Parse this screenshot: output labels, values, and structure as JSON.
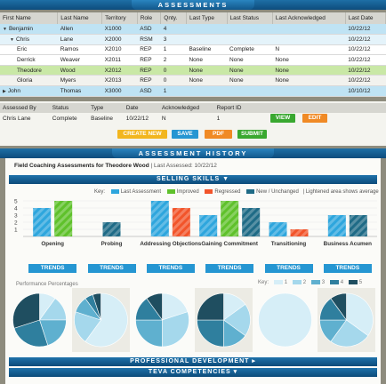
{
  "assessments_header": "ASSESSMENTS",
  "table": {
    "columns": [
      "First Name",
      "Last Name",
      "Territory",
      "Role",
      "Qnty.",
      "Last Type",
      "Last Status",
      "Last Acknowledged",
      "Last Date"
    ],
    "rows": [
      {
        "first": "Benjamin",
        "last": "Allen",
        "territory": "X1000",
        "role": "ASD",
        "qnty": "4",
        "type": "",
        "status": "",
        "ack": "",
        "date": "10/22/12",
        "style": "blue",
        "toggle": "▼",
        "indent": 0
      },
      {
        "first": "Chris",
        "last": "Lane",
        "territory": "X2000",
        "role": "RSM",
        "qnty": "3",
        "type": "",
        "status": "",
        "ack": "",
        "date": "10/22/12",
        "style": "lightblue",
        "toggle": "▼",
        "indent": 1
      },
      {
        "first": "Eric",
        "last": "Ramos",
        "territory": "X2010",
        "role": "REP",
        "qnty": "1",
        "type": "Baseline",
        "status": "Complete",
        "ack": "N",
        "date": "10/22/12",
        "style": "white",
        "toggle": "",
        "indent": 2
      },
      {
        "first": "Derrick",
        "last": "Weaver",
        "territory": "X2011",
        "role": "REP",
        "qnty": "2",
        "type": "None",
        "status": "None",
        "ack": "None",
        "date": "10/22/12",
        "style": "white",
        "toggle": "",
        "indent": 2
      },
      {
        "first": "Theodore",
        "last": "Wood",
        "territory": "X2012",
        "role": "REP",
        "qnty": "0",
        "type": "None",
        "status": "None",
        "ack": "None",
        "date": "10/22/12",
        "style": "green",
        "toggle": "",
        "indent": 2
      },
      {
        "first": "Gloria",
        "last": "Myers",
        "territory": "X2013",
        "role": "REP",
        "qnty": "0",
        "type": "None",
        "status": "None",
        "ack": "None",
        "date": "10/22/12",
        "style": "gray",
        "toggle": "",
        "indent": 2
      },
      {
        "first": "John",
        "last": "Thomas",
        "territory": "X3000",
        "role": "ASD",
        "qnty": "1",
        "type": "",
        "status": "",
        "ack": "",
        "date": "10/10/12",
        "style": "blue",
        "toggle": "▶",
        "indent": 0
      }
    ]
  },
  "detail": {
    "columns": [
      "Assessed By",
      "Status",
      "Type",
      "Date",
      "Acknowledged",
      "Report ID"
    ],
    "row": {
      "by": "Chris Lane",
      "status": "Complete",
      "type": "Baseline",
      "date": "10/22/12",
      "ack": "N",
      "report": "1"
    },
    "view_label": "VIEW",
    "edit_label": "EDIT",
    "create_label": "CREATE NEW",
    "save_label": "SAVE",
    "pdf_label": "PDF",
    "submit_label": "SUBMIT"
  },
  "history": {
    "header": "ASSESSMENT HISTORY",
    "title": "Field Coaching Assessments for Theodore Wood",
    "separator": "|",
    "last_assessed": "Last Assessed: 10/22/12",
    "selling_skills": "SELLING SKILLS ▼",
    "legend": {
      "key": "Key:",
      "last": "Last Assessment",
      "improved": "Improved",
      "regressed": "Regressed",
      "unchanged": "New / Unchanged",
      "note": "Lightened area shows average"
    },
    "trends_label": "TRENDS",
    "perf_label": "Performance Percentages",
    "pie_key": {
      "key": "Key:",
      "labels": [
        "1",
        "2",
        "3",
        "4",
        "5"
      ]
    },
    "prof_dev": "PROFESSIONAL DEVELOPMENT ▸",
    "teva": "TEVA COMPETENCIES ▾"
  },
  "colors": {
    "last": "#2ea6dd",
    "improved": "#5fc12b",
    "regressed": "#f2542a",
    "unchanged": "#1f6b86",
    "pie": [
      "#d6eef7",
      "#a5d8ec",
      "#5fb0cf",
      "#2f7f9e",
      "#1f4e60"
    ]
  },
  "chart_data": {
    "type": "bar",
    "categories": [
      "Opening",
      "Probing",
      "Addressing Objections",
      "Gaining Commitment",
      "Transitioning",
      "Business Acumen"
    ],
    "ylim": [
      0,
      5
    ],
    "yticks": [
      "1",
      "2",
      "3",
      "4",
      "5"
    ],
    "series": [
      {
        "name": "Last Assessment",
        "values": [
          4,
          null,
          5,
          3,
          2,
          3
        ]
      },
      {
        "name": "Improved",
        "values": [
          5,
          null,
          null,
          5,
          null,
          null
        ]
      },
      {
        "name": "Regressed",
        "values": [
          null,
          null,
          4,
          null,
          1,
          null
        ]
      },
      {
        "name": "New / Unchanged",
        "values": [
          null,
          2,
          null,
          4,
          null,
          3
        ]
      }
    ]
  },
  "pie_data": [
    [
      0.1,
      0.15,
      0.2,
      0.25,
      0.3
    ],
    [
      0.6,
      0.2,
      0.1,
      0.05,
      0.05
    ],
    [
      0.2,
      0.3,
      0.25,
      0.15,
      0.1
    ],
    [
      0.15,
      0.2,
      0.15,
      0.25,
      0.25
    ],
    [
      1.0,
      0,
      0,
      0,
      0
    ],
    [
      0.35,
      0.25,
      0.15,
      0.15,
      0.1
    ]
  ]
}
